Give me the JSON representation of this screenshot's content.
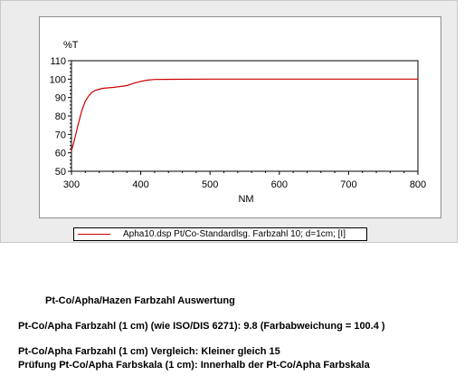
{
  "chart_data": {
    "type": "line",
    "ylabel": "%T",
    "xlabel": "NM",
    "xlim": [
      300,
      800
    ],
    "ylim": [
      50,
      110
    ],
    "x_ticks": [
      300,
      400,
      500,
      600,
      700,
      800
    ],
    "y_ticks": [
      50,
      60,
      70,
      80,
      90,
      100,
      110
    ],
    "grid": false,
    "legend_position": "bottom",
    "series": [
      {
        "name": "Apha10.dsp   Pt/Co-Standardlsg. Farbzahl 10; d=1cm; [I]",
        "color": "#cc0000",
        "x": [
          300,
          305,
          310,
          315,
          320,
          325,
          330,
          335,
          340,
          345,
          350,
          360,
          370,
          380,
          390,
          400,
          410,
          420,
          450,
          500,
          550,
          600,
          650,
          700,
          750,
          800
        ],
        "y": [
          61,
          68,
          76,
          83,
          88,
          91,
          93,
          94,
          94.5,
          95,
          95.2,
          95.5,
          96,
          96.5,
          97.8,
          98.8,
          99.5,
          99.8,
          99.9,
          100,
          100,
          100,
          100,
          100,
          100,
          100
        ]
      }
    ]
  },
  "report": {
    "title": "Pt-Co/Apha/Hazen Farbzahl Auswertung",
    "line1": "Pt-Co/Apha Farbzahl (1 cm) (wie ISO/DIS 6271):    9.8  (Farbabweichung = 100.4 )",
    "line2": "Pt-Co/Apha Farbzahl (1 cm) Vergleich:    Kleiner gleich 15",
    "line3": "Prüfung Pt-Co/Apha Farbskala (1 cm):    Innerhalb der Pt-Co/Apha Farbskala"
  }
}
